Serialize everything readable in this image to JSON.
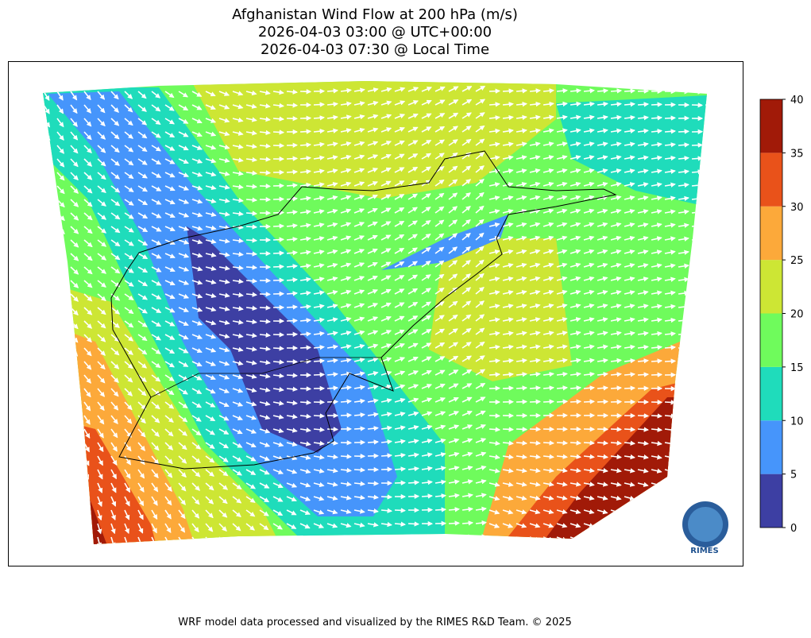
{
  "header": {
    "title": [
      "Afghanistan Wind Flow at 200 hPa (m/s)",
      "2026-04-03 03:00 @ UTC+00:00",
      "2026-04-03 07:30 @ Local Time"
    ]
  },
  "colorbar": {
    "ticks": [
      0,
      5,
      10,
      15,
      20,
      25,
      30,
      35,
      40
    ],
    "colors": [
      "#3d3fa3",
      "#4695fb",
      "#1fdcbb",
      "#6ffb5c",
      "#cde634",
      "#fca93a",
      "#e9521a",
      "#a11a08"
    ]
  },
  "logo": {
    "text": "RIMES"
  },
  "footer": {
    "text": "WRF model data processed and visualized by the RIMES R&D Team. © 2025"
  }
}
